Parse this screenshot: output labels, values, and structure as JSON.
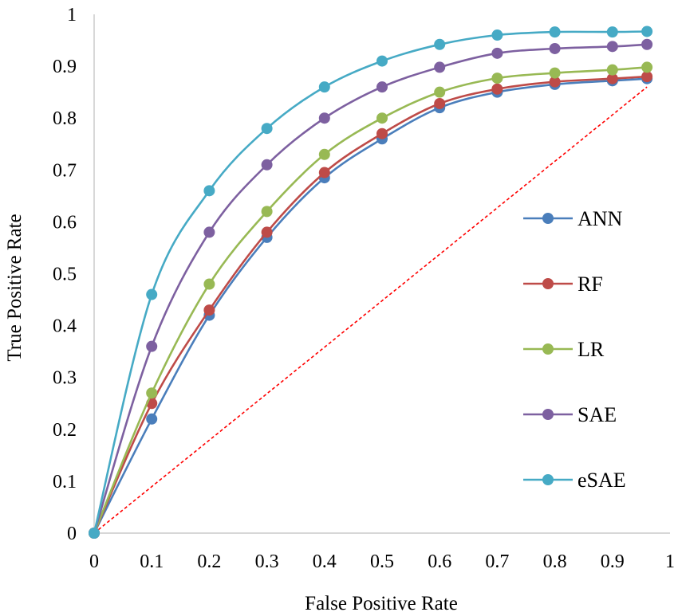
{
  "chart_data": {
    "type": "line",
    "xlabel": "False Positive Rate",
    "ylabel": "True Positive Rate",
    "xlim": [
      0,
      1
    ],
    "ylim": [
      0,
      1
    ],
    "xticks": [
      "0",
      "0.1",
      "0.2",
      "0.3",
      "0.4",
      "0.5",
      "0.6",
      "0.7",
      "0.8",
      "0.9",
      "1"
    ],
    "yticks": [
      "0",
      "0.1",
      "0.2",
      "0.3",
      "0.4",
      "0.5",
      "0.6",
      "0.7",
      "0.8",
      "0.9",
      "1"
    ],
    "grid": false,
    "legend_position": "right",
    "x": [
      0,
      0.1,
      0.2,
      0.3,
      0.4,
      0.5,
      0.6,
      0.7,
      0.8,
      0.9,
      0.96
    ],
    "series": [
      {
        "name": "ANN",
        "color": "#4a7ebb",
        "values": [
          0,
          0.22,
          0.42,
          0.57,
          0.685,
          0.76,
          0.82,
          0.85,
          0.865,
          0.872,
          0.876
        ]
      },
      {
        "name": "RF",
        "color": "#be4b48",
        "values": [
          0,
          0.25,
          0.43,
          0.58,
          0.695,
          0.77,
          0.828,
          0.856,
          0.87,
          0.876,
          0.88
        ]
      },
      {
        "name": "LR",
        "color": "#98b954",
        "values": [
          0,
          0.27,
          0.48,
          0.62,
          0.73,
          0.8,
          0.85,
          0.877,
          0.887,
          0.893,
          0.898
        ]
      },
      {
        "name": "SAE",
        "color": "#7d60a0",
        "values": [
          0,
          0.36,
          0.58,
          0.71,
          0.8,
          0.86,
          0.898,
          0.925,
          0.934,
          0.938,
          0.942
        ]
      },
      {
        "name": "eSAE",
        "color": "#46aac5",
        "values": [
          0,
          0.46,
          0.66,
          0.78,
          0.86,
          0.91,
          0.942,
          0.96,
          0.966,
          0.966,
          0.967
        ]
      }
    ],
    "reference_line": {
      "color": "#ff0000",
      "x": [
        0,
        0.96
      ],
      "y": [
        0,
        0.86
      ]
    }
  }
}
